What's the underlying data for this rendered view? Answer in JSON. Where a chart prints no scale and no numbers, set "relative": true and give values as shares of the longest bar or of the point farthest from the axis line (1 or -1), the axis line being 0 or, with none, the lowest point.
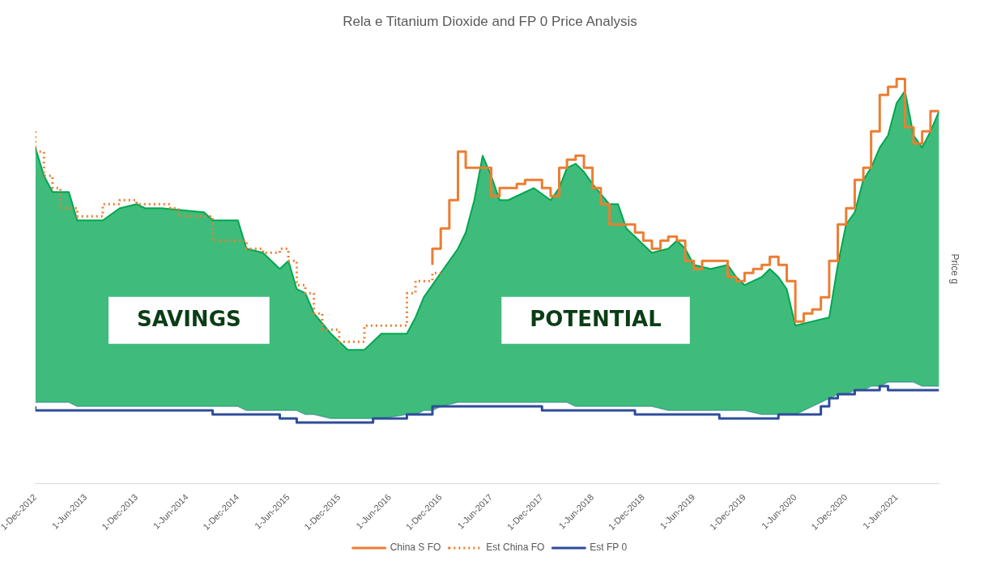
{
  "chart_data": {
    "type": "step",
    "title": "Rela e Titanium Dioxide and FP 0 Price Analysis",
    "ylabel": "Price g",
    "relative": true,
    "legend": "bottom",
    "xlim": [
      "2012-12-01",
      "2021-11-01"
    ],
    "xticks": [
      {
        "value": "2012-12-01",
        "label": "1-Dec-2012"
      },
      {
        "value": "2013-06-01",
        "label": "1-Jun-2013"
      },
      {
        "value": "2013-12-01",
        "label": "1-Dec-2013"
      },
      {
        "value": "2014-06-01",
        "label": "1-Jun-2014"
      },
      {
        "value": "2014-12-01",
        "label": "1-Dec-2014"
      },
      {
        "value": "2015-06-01",
        "label": "1-Jun-2015"
      },
      {
        "value": "2015-12-01",
        "label": "1-Dec-2015"
      },
      {
        "value": "2016-06-01",
        "label": "1-Jun-2016"
      },
      {
        "value": "2016-12-01",
        "label": "1-Dec-2016"
      },
      {
        "value": "2017-06-01",
        "label": "1-Jun-2017"
      },
      {
        "value": "2017-12-01",
        "label": "1-Dec-2017"
      },
      {
        "value": "2018-06-01",
        "label": "1-Jun-2018"
      },
      {
        "value": "2018-12-01",
        "label": "1-Dec-2018"
      },
      {
        "value": "2019-06-01",
        "label": "1-Jun-2019"
      },
      {
        "value": "2019-12-01",
        "label": "1-Dec-2019"
      },
      {
        "value": "2020-06-01",
        "label": "1-Jun-2020"
      },
      {
        "value": "2020-12-01",
        "label": "1-Dec-2020"
      },
      {
        "value": "2021-06-01",
        "label": "1-Jun-2021"
      }
    ],
    "annotations": [
      "SAVINGS",
      "POTENTIAL"
    ],
    "series": [
      {
        "type": "line",
        "color": "#8fa8d0",
        "x": [
          "2012-12-01",
          "2013-01-01",
          "2013-02-01",
          "2013-04-01",
          "2013-05-01",
          "2013-08-01",
          "2013-10-01",
          "2013-12-01",
          "2014-01-01",
          "2014-03-01",
          "2014-08-01",
          "2014-09-01",
          "2014-12-01",
          "2015-01-01",
          "2015-03-01",
          "2015-05-01",
          "2015-06-01",
          "2015-07-01",
          "2015-08-01",
          "2015-09-01",
          "2015-11-01",
          "2016-01-01",
          "2016-03-01",
          "2016-05-01",
          "2016-08-01",
          "2016-09-01",
          "2016-10-01",
          "2016-11-01",
          "2016-12-01",
          "2017-02-01",
          "2017-03-01",
          "2017-04-01",
          "2017-05-01",
          "2017-06-01",
          "2017-07-01",
          "2017-08-01",
          "2017-09-01",
          "2017-11-01",
          "2018-01-01",
          "2018-02-01",
          "2018-03-01",
          "2018-04-01",
          "2018-05-01",
          "2018-06-01",
          "2018-08-01",
          "2018-09-01",
          "2018-10-01",
          "2018-11-01",
          "2018-12-01",
          "2019-01-01",
          "2019-03-01",
          "2019-04-01",
          "2019-05-01",
          "2019-06-01",
          "2019-08-01",
          "2019-10-01",
          "2019-11-01",
          "2019-12-01",
          "2020-02-01",
          "2020-03-01",
          "2020-04-01",
          "2020-05-01",
          "2020-06-01",
          "2020-10-01",
          "2020-11-01",
          "2020-12-01",
          "2021-01-01",
          "2021-02-01",
          "2021-03-01",
          "2021-04-01",
          "2021-05-01",
          "2021-06-01",
          "2021-07-01",
          "2021-08-01",
          "2021-09-01",
          "2021-10-01",
          "2021-11-01"
        ],
        "values": [
          0.2,
          0.2,
          0.2,
          0.2,
          0.19,
          0.19,
          0.19,
          0.19,
          0.19,
          0.19,
          0.19,
          0.19,
          0.19,
          0.18,
          0.18,
          0.18,
          0.18,
          0.18,
          0.17,
          0.17,
          0.16,
          0.16,
          0.16,
          0.16,
          0.17,
          0.17,
          0.18,
          0.18,
          0.19,
          0.2,
          0.2,
          0.2,
          0.2,
          0.2,
          0.2,
          0.2,
          0.2,
          0.2,
          0.2,
          0.2,
          0.2,
          0.19,
          0.19,
          0.19,
          0.19,
          0.19,
          0.19,
          0.19,
          0.19,
          0.19,
          0.18,
          0.18,
          0.18,
          0.18,
          0.18,
          0.18,
          0.18,
          0.18,
          0.17,
          0.17,
          0.17,
          0.17,
          0.17,
          0.21,
          0.22,
          0.22,
          0.23,
          0.23,
          0.24,
          0.24,
          0.25,
          0.25,
          0.25,
          0.25,
          0.24,
          0.24,
          0.24
        ]
      },
      {
        "type": "area",
        "color": "#00a650",
        "x": [
          "2012-12-01",
          "2013-01-01",
          "2013-02-01",
          "2013-04-01",
          "2013-05-01",
          "2013-08-01",
          "2013-10-01",
          "2013-12-01",
          "2014-01-01",
          "2014-03-01",
          "2014-08-01",
          "2014-09-01",
          "2014-12-01",
          "2015-01-01",
          "2015-03-01",
          "2015-05-01",
          "2015-06-01",
          "2015-07-01",
          "2015-08-01",
          "2015-09-01",
          "2015-11-01",
          "2016-01-01",
          "2016-03-01",
          "2016-05-01",
          "2016-08-01",
          "2016-09-01",
          "2016-10-01",
          "2016-11-01",
          "2016-12-01",
          "2017-02-01",
          "2017-03-01",
          "2017-04-01",
          "2017-05-01",
          "2017-06-01",
          "2017-07-01",
          "2017-08-01",
          "2017-09-01",
          "2017-11-01",
          "2018-01-01",
          "2018-02-01",
          "2018-03-01",
          "2018-04-01",
          "2018-05-01",
          "2018-06-01",
          "2018-08-01",
          "2018-09-01",
          "2018-10-01",
          "2018-11-01",
          "2018-12-01",
          "2019-01-01",
          "2019-03-01",
          "2019-04-01",
          "2019-05-01",
          "2019-06-01",
          "2019-08-01",
          "2019-10-01",
          "2019-11-01",
          "2019-12-01",
          "2020-02-01",
          "2020-03-01",
          "2020-04-01",
          "2020-05-01",
          "2020-06-01",
          "2020-10-01",
          "2020-11-01",
          "2020-12-01",
          "2021-01-01",
          "2021-02-01",
          "2021-03-01",
          "2021-04-01",
          "2021-05-01",
          "2021-06-01",
          "2021-07-01",
          "2021-08-01",
          "2021-09-01",
          "2021-10-01",
          "2021-11-01"
        ],
        "values": [
          0.83,
          0.76,
          0.72,
          0.72,
          0.65,
          0.65,
          0.68,
          0.69,
          0.68,
          0.68,
          0.67,
          0.65,
          0.65,
          0.58,
          0.57,
          0.53,
          0.55,
          0.48,
          0.47,
          0.42,
          0.37,
          0.33,
          0.33,
          0.37,
          0.37,
          0.41,
          0.46,
          0.49,
          0.52,
          0.58,
          0.62,
          0.7,
          0.81,
          0.76,
          0.7,
          0.7,
          0.71,
          0.73,
          0.7,
          0.73,
          0.78,
          0.79,
          0.77,
          0.74,
          0.69,
          0.69,
          0.63,
          0.61,
          0.59,
          0.57,
          0.58,
          0.6,
          0.58,
          0.54,
          0.53,
          0.54,
          0.51,
          0.49,
          0.51,
          0.53,
          0.51,
          0.48,
          0.39,
          0.41,
          0.54,
          0.64,
          0.67,
          0.75,
          0.78,
          0.83,
          0.86,
          0.94,
          0.97,
          0.86,
          0.83,
          0.87,
          0.92
        ]
      },
      {
        "name": "China S FO",
        "color": "#ed7d31",
        "line_style": "solid",
        "x": [
          "2016-11-01",
          "2016-12-01",
          "2017-01-01",
          "2017-02-01",
          "2017-03-01",
          "2017-06-01",
          "2017-07-01",
          "2017-09-01",
          "2017-10-01",
          "2017-12-01",
          "2018-01-01",
          "2018-02-01",
          "2018-03-01",
          "2018-04-01",
          "2018-05-01",
          "2018-06-01",
          "2018-07-01",
          "2018-08-01",
          "2018-11-01",
          "2018-12-01",
          "2019-01-01",
          "2019-02-01",
          "2019-03-01",
          "2019-04-01",
          "2019-05-01",
          "2019-06-01",
          "2019-07-01",
          "2019-10-01",
          "2019-11-01",
          "2019-12-01",
          "2020-01-01",
          "2020-02-01",
          "2020-03-01",
          "2020-04-01",
          "2020-05-01",
          "2020-06-01",
          "2020-07-01",
          "2020-08-01",
          "2020-09-01",
          "2020-10-01",
          "2020-11-01",
          "2020-12-01",
          "2021-01-01",
          "2021-02-01",
          "2021-03-01",
          "2021-04-01",
          "2021-05-01",
          "2021-06-01",
          "2021-07-01",
          "2021-08-01",
          "2021-09-01",
          "2021-10-01",
          "2021-11-01"
        ],
        "values": [
          0.54,
          0.58,
          0.63,
          0.7,
          0.82,
          0.78,
          0.71,
          0.73,
          0.74,
          0.75,
          0.73,
          0.71,
          0.78,
          0.8,
          0.81,
          0.78,
          0.73,
          0.69,
          0.64,
          0.62,
          0.6,
          0.58,
          0.6,
          0.61,
          0.6,
          0.55,
          0.53,
          0.55,
          0.51,
          0.5,
          0.52,
          0.53,
          0.54,
          0.56,
          0.54,
          0.5,
          0.4,
          0.42,
          0.43,
          0.46,
          0.55,
          0.64,
          0.68,
          0.75,
          0.78,
          0.87,
          0.96,
          0.98,
          1,
          0.88,
          0.84,
          0.87,
          0.92
        ]
      },
      {
        "name": "Est China FO",
        "color": "#ed7d31",
        "line_style": "dotted",
        "x": [
          "2012-12-01",
          "2013-01-01",
          "2013-02-01",
          "2013-03-01",
          "2013-05-01",
          "2013-06-01",
          "2013-08-01",
          "2013-10-01",
          "2013-12-01",
          "2014-02-01",
          "2014-04-01",
          "2014-05-01",
          "2014-09-01",
          "2015-01-01",
          "2015-03-01",
          "2015-05-01",
          "2015-06-01",
          "2015-07-01",
          "2015-08-01",
          "2015-09-01",
          "2015-10-01",
          "2015-12-01",
          "2016-01-01",
          "2016-03-01",
          "2016-04-01",
          "2016-08-01",
          "2016-09-01",
          "2016-11-01",
          "2016-12-01"
        ],
        "values": [
          0.87,
          0.82,
          0.76,
          0.73,
          0.68,
          0.66,
          0.66,
          0.69,
          0.7,
          0.69,
          0.69,
          0.68,
          0.66,
          0.6,
          0.58,
          0.57,
          0.58,
          0.55,
          0.49,
          0.47,
          0.42,
          0.38,
          0.35,
          0.35,
          0.39,
          0.39,
          0.47,
          0.5,
          0.52
        ]
      },
      {
        "name": "Est FP 0",
        "color": "#2e4c9a",
        "line_style": "solid",
        "x": [
          "2012-12-01",
          "2013-02-01",
          "2013-05-01",
          "2013-09-01",
          "2014-09-01",
          "2014-12-01",
          "2015-05-01",
          "2015-07-01",
          "2015-12-01",
          "2016-04-01",
          "2016-08-01",
          "2016-11-01",
          "2017-03-01",
          "2017-06-01",
          "2017-12-01",
          "2018-07-01",
          "2018-11-01",
          "2019-04-01",
          "2019-09-01",
          "2020-04-01",
          "2020-09-01",
          "2020-10-01",
          "2020-11-01",
          "2021-01-01",
          "2021-04-01",
          "2021-05-01",
          "2021-06-01",
          "2021-08-01",
          "2021-09-01",
          "2021-11-01"
        ],
        "values": [
          0.19,
          0.18,
          0.18,
          0.18,
          0.18,
          0.17,
          0.17,
          0.16,
          0.15,
          0.15,
          0.16,
          0.17,
          0.19,
          0.19,
          0.19,
          0.18,
          0.18,
          0.17,
          0.17,
          0.16,
          0.17,
          0.19,
          0.21,
          0.22,
          0.23,
          0.24,
          0.23,
          0.23,
          0.23,
          0.23
        ]
      }
    ]
  }
}
